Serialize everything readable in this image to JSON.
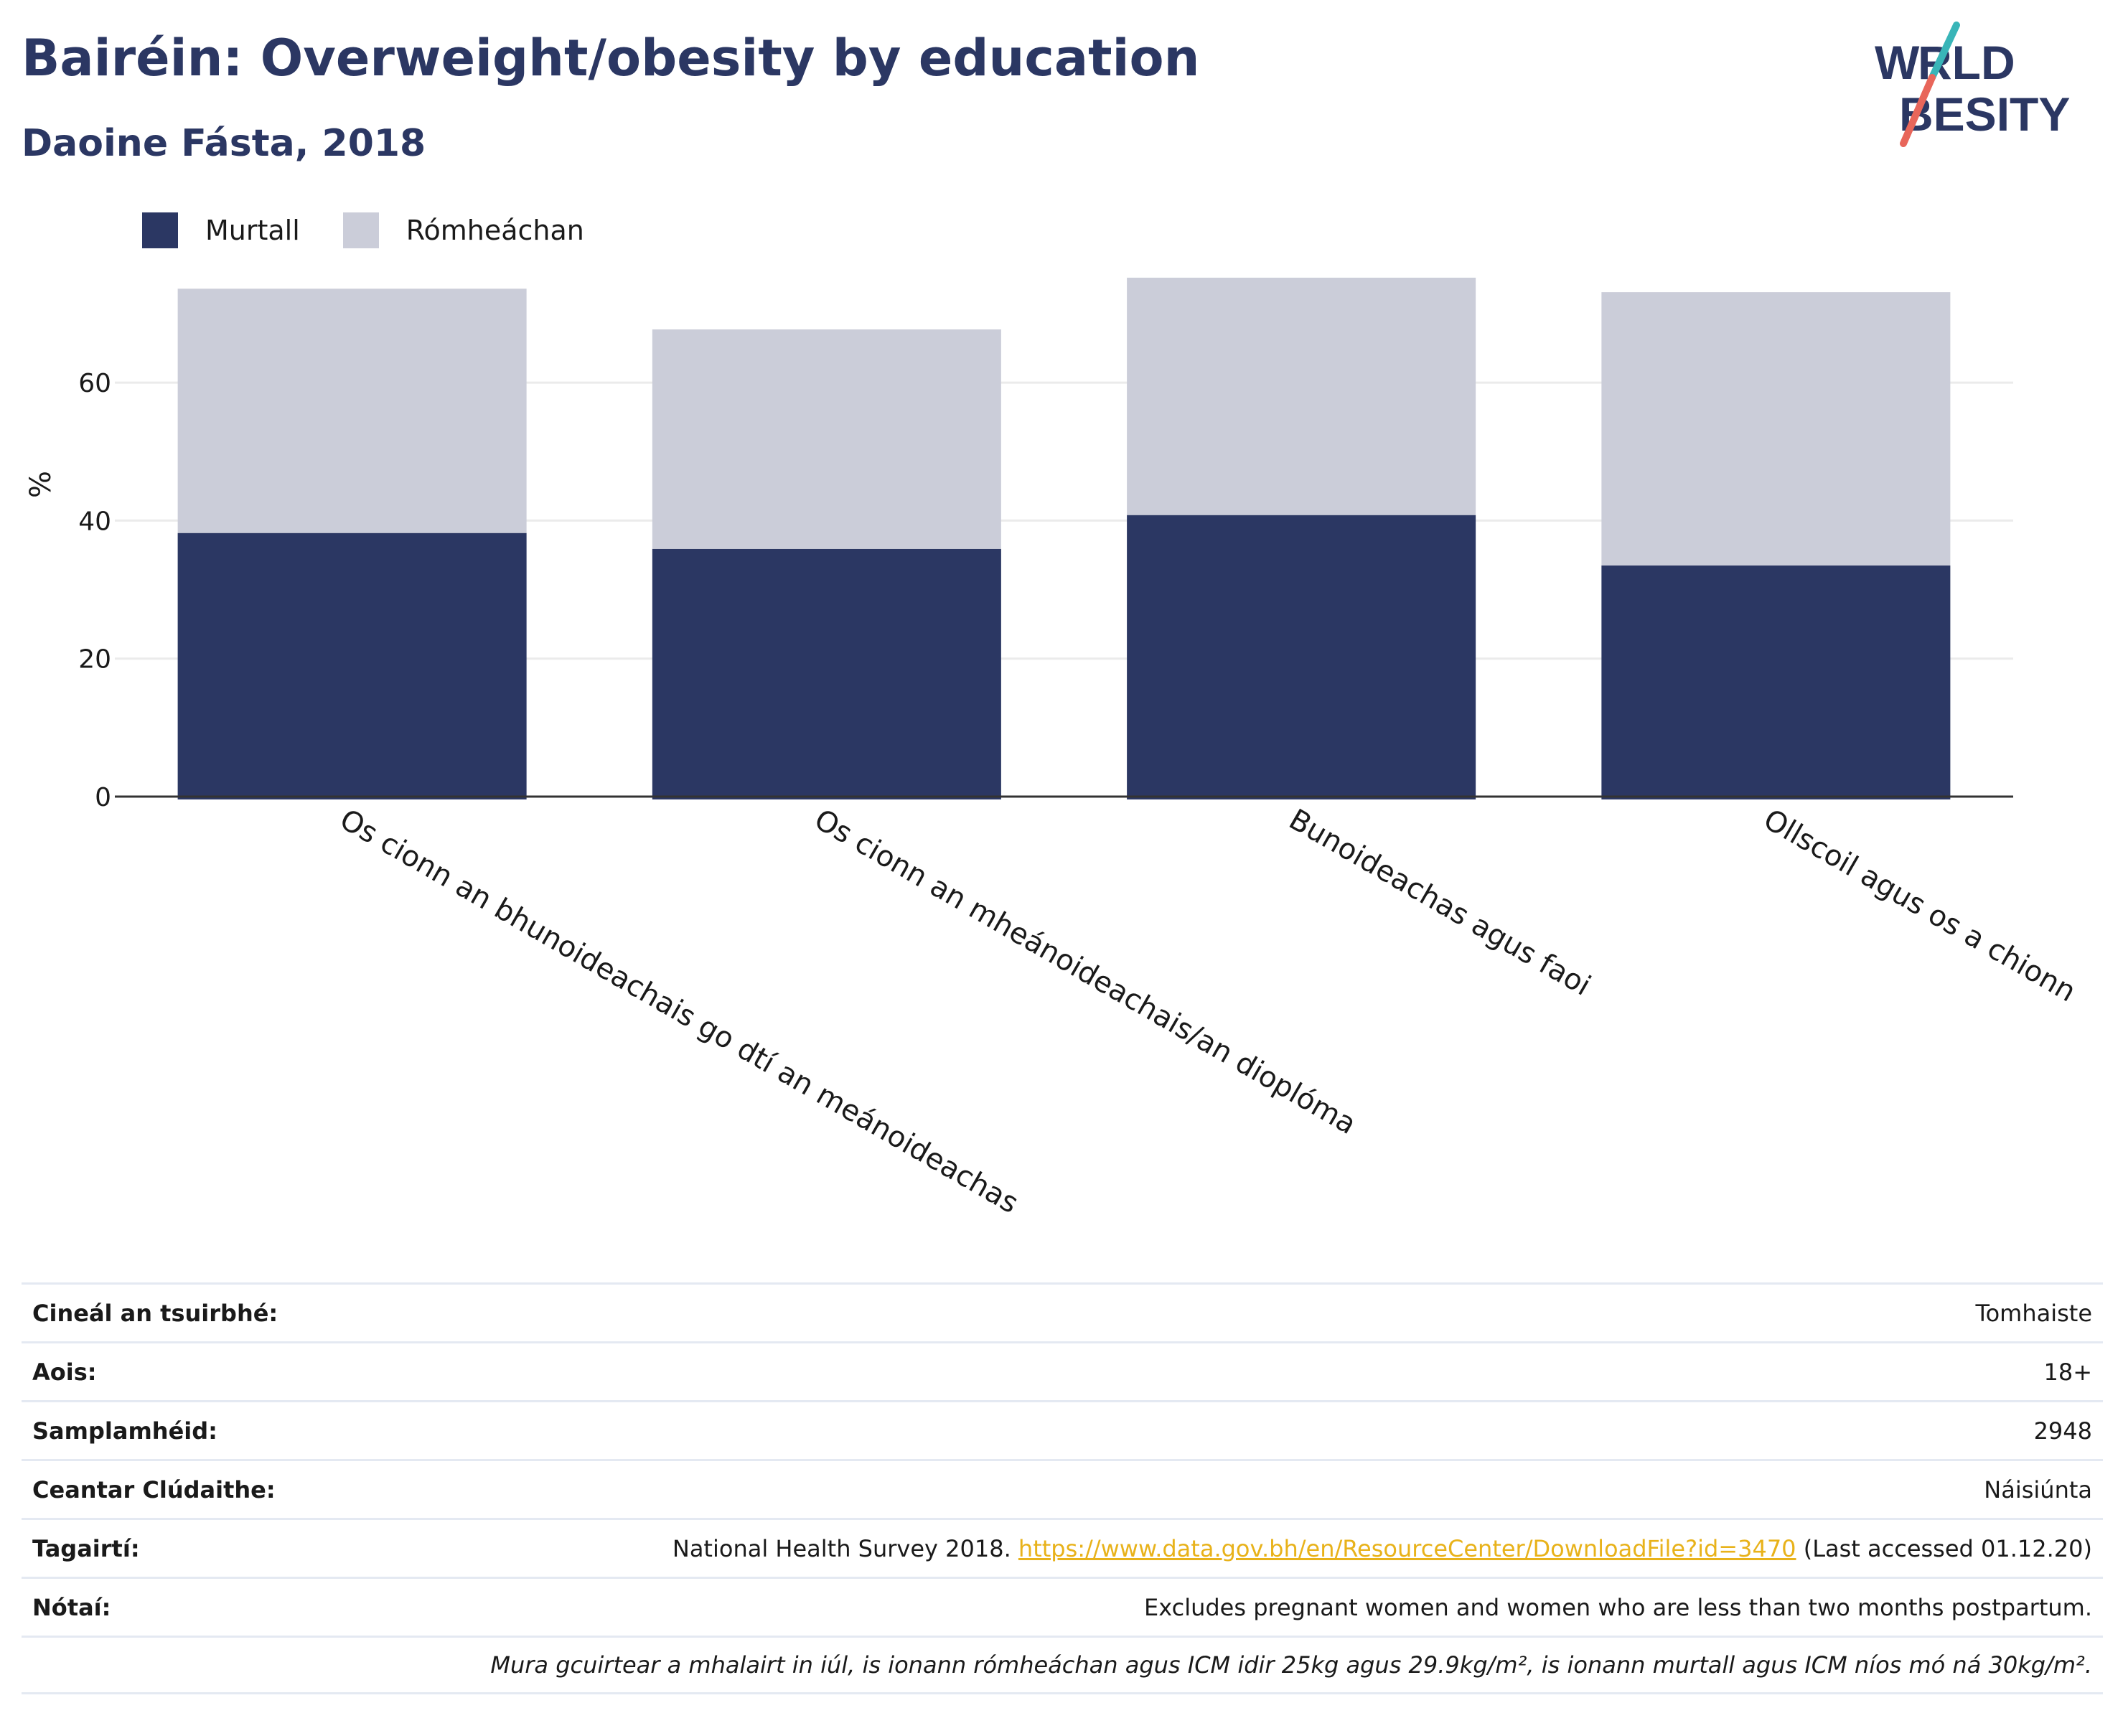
{
  "title": "Bairéin: Overweight/obesity by education",
  "subtitle": "Daoine Fásta, 2018",
  "logo": {
    "line1": "WORLD",
    "line2": "OBESITY"
  },
  "colors": {
    "obese": "#2b3763",
    "overweight": "#cbcdd9",
    "accent_red": "#e8665a",
    "accent_teal": "#39b5b8",
    "link": "#e8b21a"
  },
  "legend": [
    {
      "label": "Murtall",
      "color": "#2b3763"
    },
    {
      "label": "Rómheáchan",
      "color": "#cbcdd9"
    }
  ],
  "chart_data": {
    "type": "bar",
    "stacked": true,
    "ylabel": "%",
    "ylim": [
      0,
      78
    ],
    "yticks": [
      0,
      20,
      40,
      60
    ],
    "categories": [
      "Os cionn an bhunoideachais go dtí an meánoideachas",
      "Os cionn an mheánoideachais/an dioplóma",
      "Bunoideachas agus faoi",
      "Ollscoil agus os a chionn"
    ],
    "series": [
      {
        "name": "Murtall",
        "values": [
          38.2,
          35.9,
          40.8,
          33.5
        ]
      },
      {
        "name": "Rómheáchan",
        "values": [
          35.4,
          31.8,
          34.4,
          39.6
        ]
      }
    ]
  },
  "meta": [
    {
      "key": "Cineál an tsuirbhé:",
      "value": "Tomhaiste"
    },
    {
      "key": "Aois:",
      "value": "18+"
    },
    {
      "key": "Samplamhéid:",
      "value": "2948"
    },
    {
      "key": "Ceantar Clúdaithe:",
      "value": "Náisiúnta"
    },
    {
      "key": "Tagairtí:",
      "value_pre": "National Health Survey 2018. ",
      "link": "https://www.data.gov.bh/en/ResourceCenter/DownloadFile?id=3470",
      "value_post": " (Last accessed 01.12.20)"
    },
    {
      "key": "Nótaí:",
      "value": "Excludes pregnant women and women who are less than two months postpartum."
    },
    {
      "key": "",
      "value": "Mura gcuirtear a mhalairt in iúl, is ionann rómheáchan agus ICM idir 25kg agus 29.9kg/m², is ionann murtall agus ICM níos mó ná 30kg/m²."
    }
  ]
}
